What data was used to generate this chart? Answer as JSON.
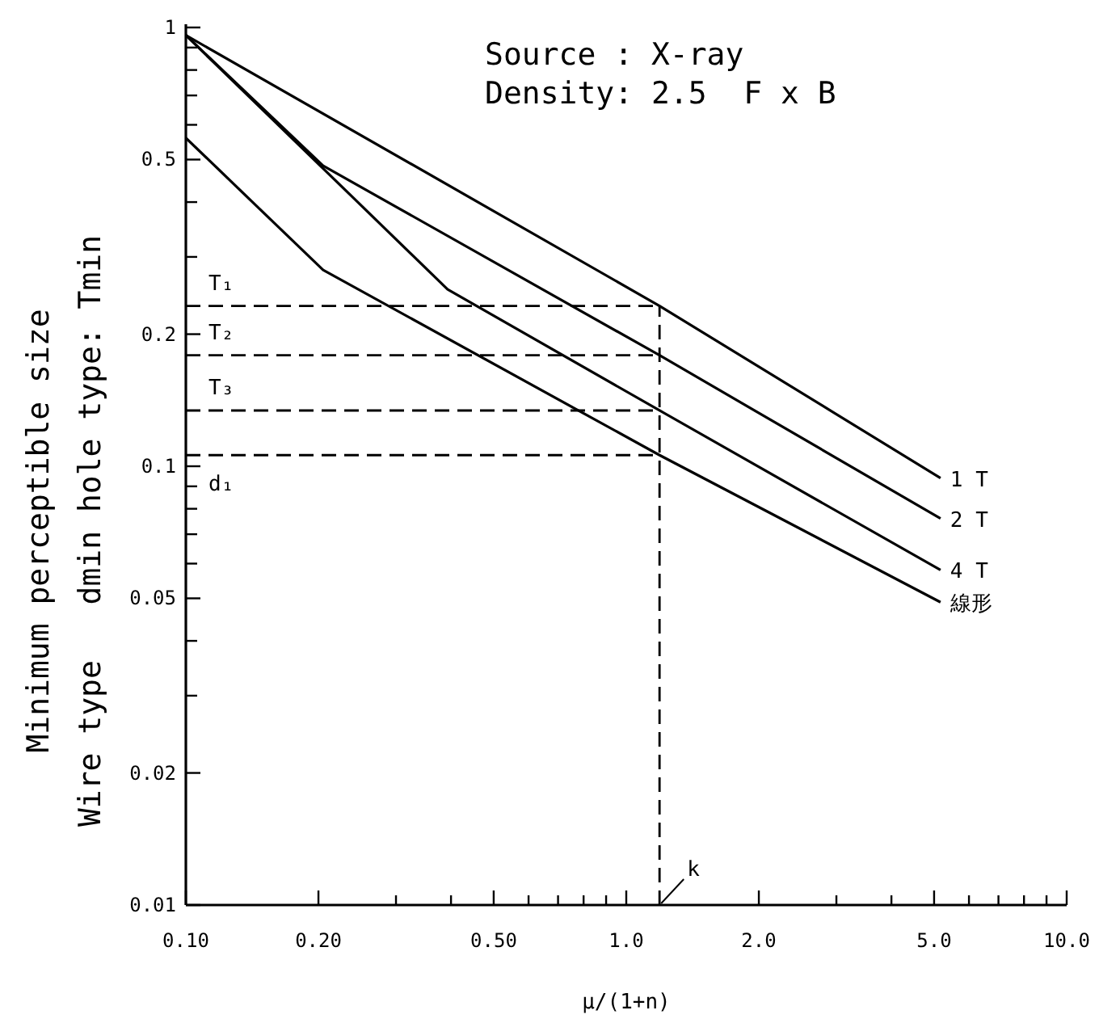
{
  "chart_data": {
    "type": "line",
    "log": "xy",
    "marker": "none",
    "line_style": "solid",
    "xlabel": "μ/(1+n)",
    "ylabel": "Minimum perceptible size\nWire type   dmin hole type: Tmin",
    "annotations": [
      "Source : X-ray",
      "Density: 2.5  F x B"
    ],
    "xlim": [
      0.1,
      10
    ],
    "ylim": [
      0.01,
      1
    ],
    "xticks": [
      {
        "value": 0.1,
        "label": "0.10"
      },
      {
        "value": 0.2,
        "label": "0.20"
      },
      {
        "value": 0.3,
        "label": null
      },
      {
        "value": 0.4,
        "label": null
      },
      {
        "value": 0.5,
        "label": "0.50"
      },
      {
        "value": 0.6,
        "label": null
      },
      {
        "value": 0.7,
        "label": null
      },
      {
        "value": 0.8,
        "label": null
      },
      {
        "value": 0.9,
        "label": null
      },
      {
        "value": 1,
        "label": "1.0"
      },
      {
        "value": 2,
        "label": "2.0"
      },
      {
        "value": 3,
        "label": null
      },
      {
        "value": 4,
        "label": null
      },
      {
        "value": 5,
        "label": "5.0"
      },
      {
        "value": 6,
        "label": null
      },
      {
        "value": 7,
        "label": null
      },
      {
        "value": 8,
        "label": null
      },
      {
        "value": 9,
        "label": null
      },
      {
        "value": 10,
        "label": "10.0"
      }
    ],
    "yticks": [
      0.01,
      0.02,
      {
        "value": 0.03,
        "label": null
      },
      {
        "value": 0.04,
        "label": null
      },
      0.05,
      {
        "value": 0.06,
        "label": null
      },
      {
        "value": 0.07,
        "label": null
      },
      {
        "value": 0.08,
        "label": null
      },
      {
        "value": 0.09,
        "label": null
      },
      0.1,
      0.2,
      {
        "value": 0.3,
        "label": null
      },
      {
        "value": 0.4,
        "label": null
      },
      0.5,
      {
        "value": 0.6,
        "label": null
      },
      {
        "value": 0.7,
        "label": null
      },
      {
        "value": 0.8,
        "label": null
      },
      {
        "value": 0.9,
        "label": null
      },
      1
    ],
    "series": [
      {
        "name": "1 T",
        "color": "#000000",
        "x": [
          0.1,
          1.19,
          5.17
        ],
        "values": [
          0.96,
          0.232,
          0.094
        ]
      },
      {
        "name": "2 T",
        "color": "#000000",
        "x": [
          0.1,
          0.205,
          1.19,
          5.17
        ],
        "values": [
          0.96,
          0.484,
          0.179,
          0.076
        ]
      },
      {
        "name": "4 T",
        "color": "#000000",
        "x": [
          0.1,
          0.393,
          1.19,
          5.17
        ],
        "values": [
          0.96,
          0.253,
          0.134,
          0.058
        ]
      },
      {
        "name": "線形",
        "color": "#000000",
        "x": [
          0.1,
          0.205,
          1.19,
          5.17
        ],
        "values": [
          0.56,
          0.28,
          0.106,
          0.049
        ]
      }
    ],
    "ref_lines": [
      {
        "axis": "y",
        "value": 0.232,
        "label": "T₁",
        "line_style": "dashed",
        "color": "#000000"
      },
      {
        "axis": "y",
        "value": 0.179,
        "label": "T₂",
        "line_style": "dashed",
        "color": "#000000"
      },
      {
        "axis": "y",
        "value": 0.134,
        "label": "T₃",
        "line_style": "dashed",
        "color": "#000000"
      },
      {
        "axis": "y",
        "value": 0.106,
        "label": "d₁",
        "line_style": "dashed",
        "color": "#000000"
      },
      {
        "axis": "x",
        "value": 1.19,
        "label": "k",
        "line_style": "dashed",
        "color": "#000000"
      }
    ]
  }
}
